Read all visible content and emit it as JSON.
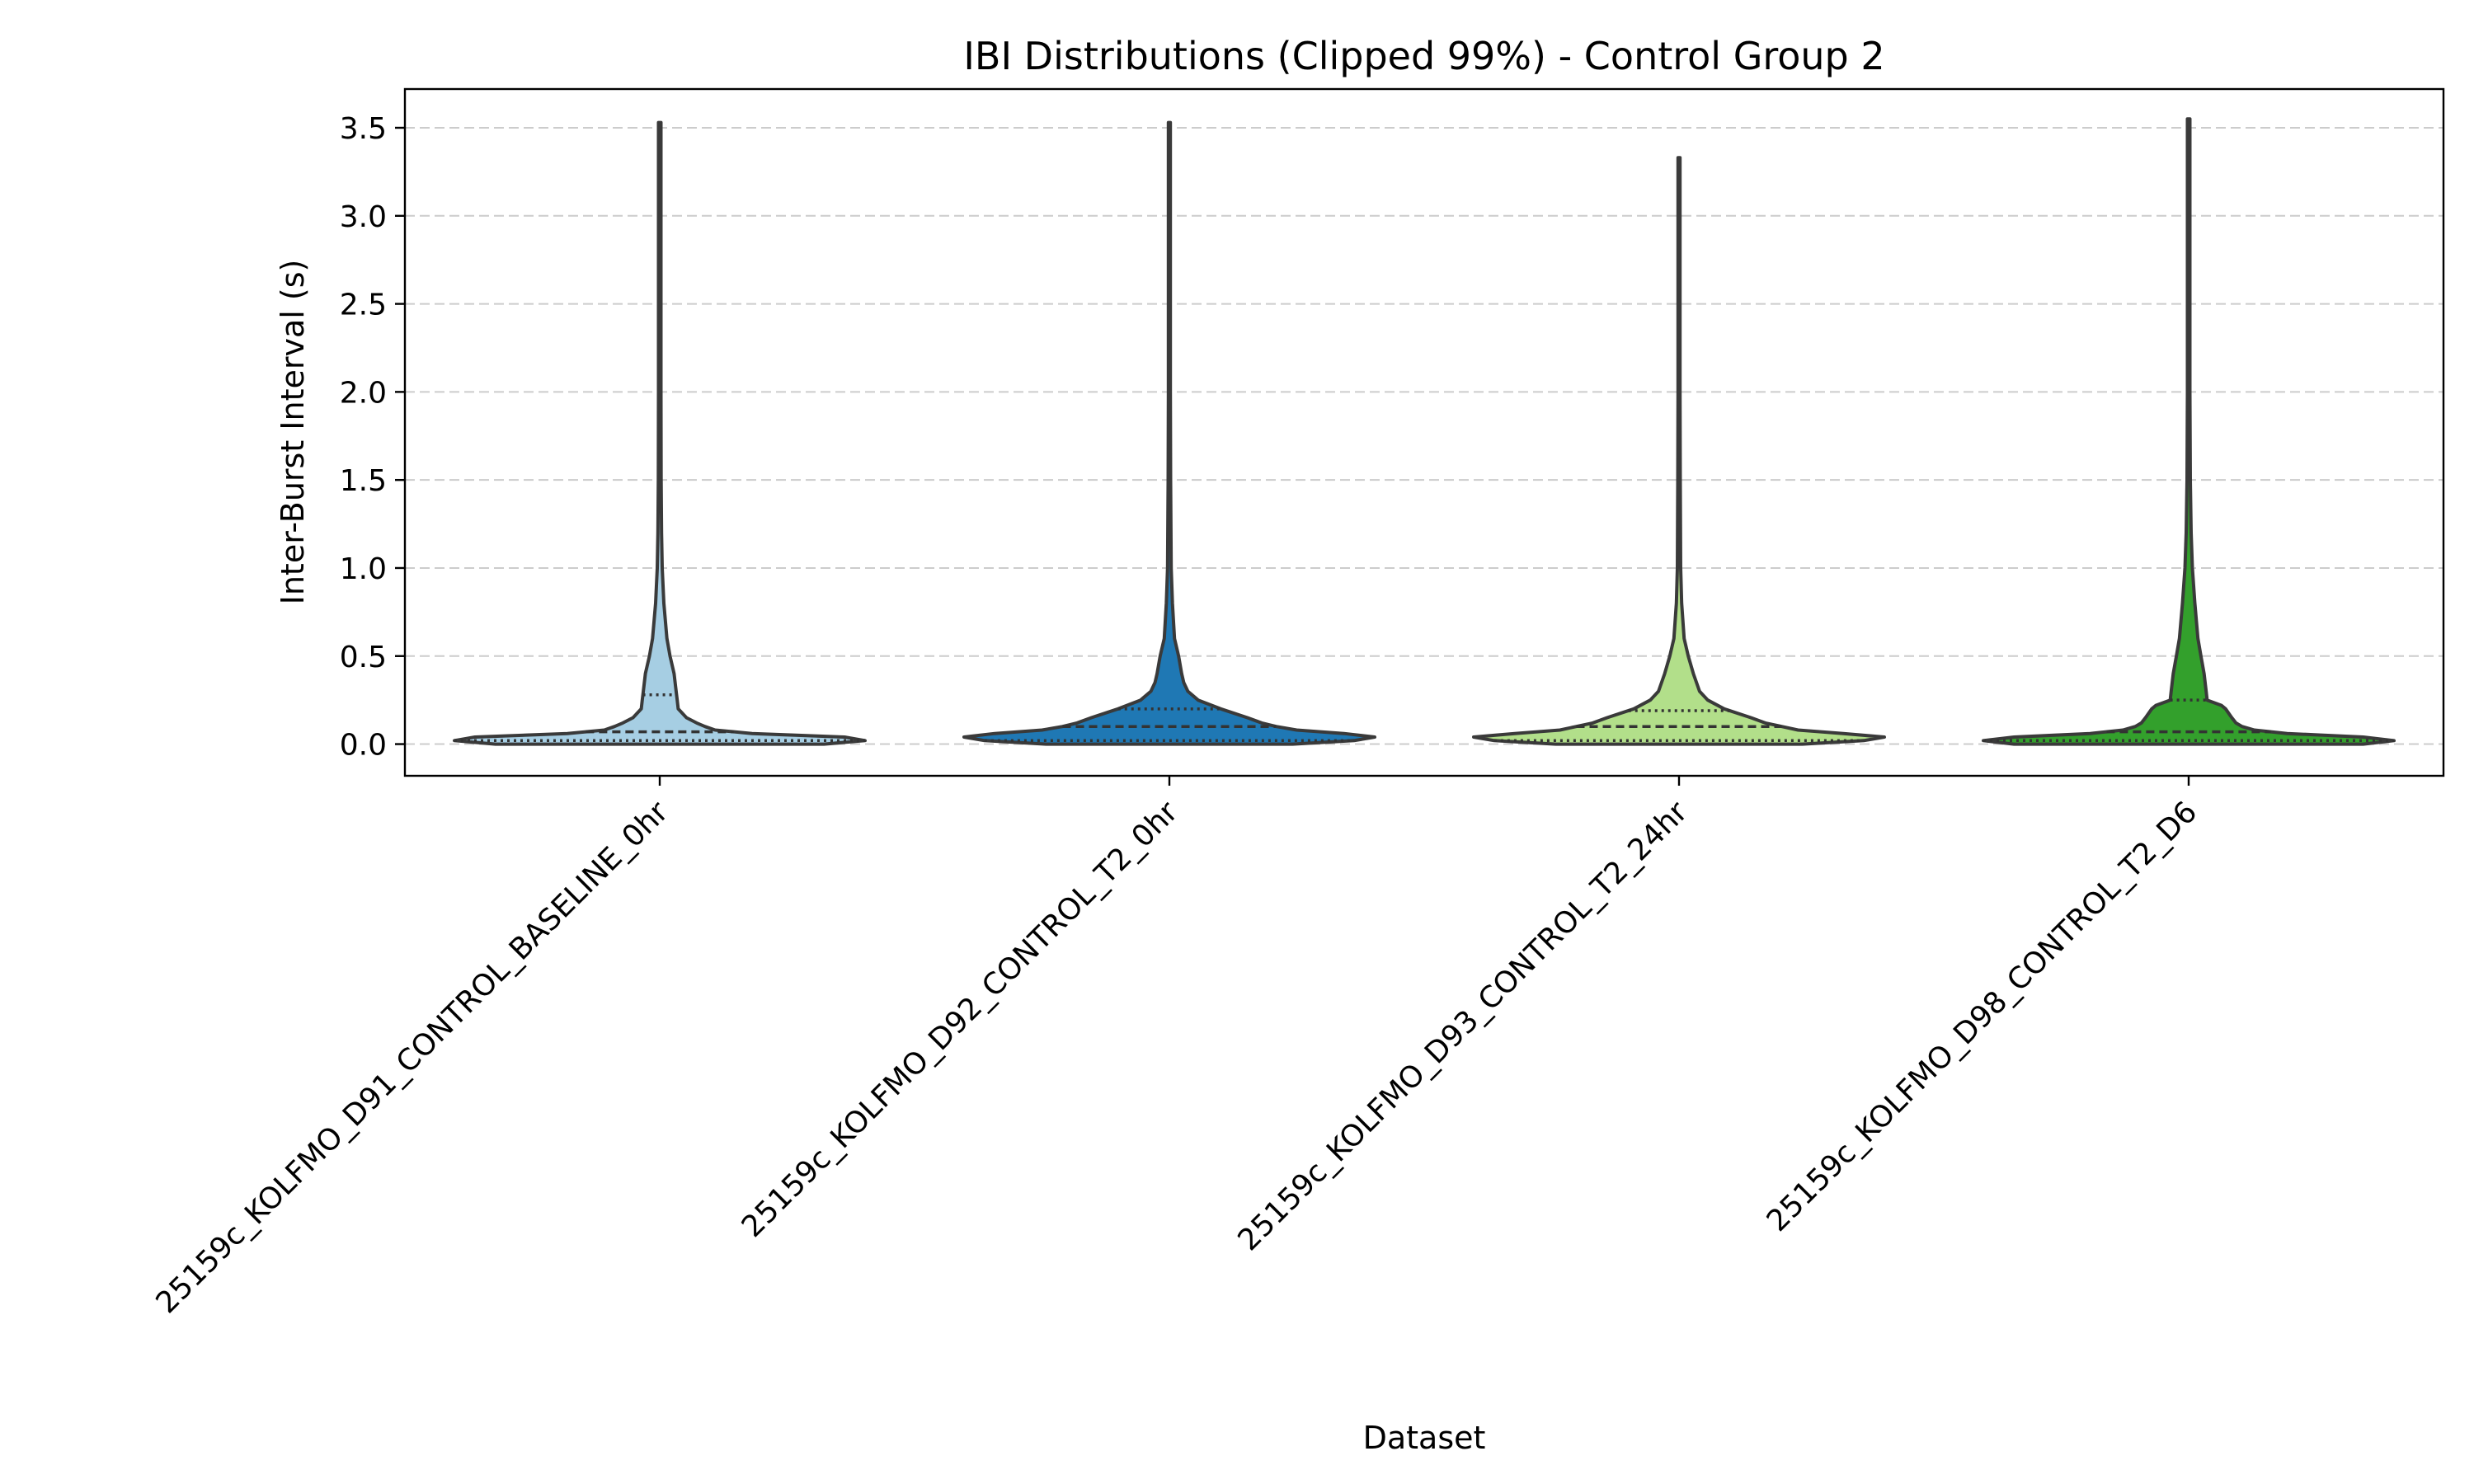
{
  "chart_data": {
    "type": "violin",
    "title": "IBI Distributions (Clipped 99%) - Control Group 2",
    "xlabel": "Dataset",
    "ylabel": "Inter-Burst Interval (s)",
    "ylim": [
      -0.18,
      3.72
    ],
    "yticks": [
      0.0,
      0.5,
      1.0,
      1.5,
      2.0,
      2.5,
      3.0,
      3.5
    ],
    "ytick_labels": [
      "0.0",
      "0.5",
      "1.0",
      "1.5",
      "2.0",
      "2.5",
      "3.0",
      "3.5"
    ],
    "grid": "y-dashed",
    "categories": [
      "25159c_KOLFMO_D91_CONTROL_BASELINE_0hr",
      "25159c_KOLFMO_D92_CONTROL_T2_0hr",
      "25159c_KOLFMO_D93_CONTROL_T2_24hr",
      "25159c_KOLFMO_D98_CONTROL_T2_D6"
    ],
    "colors": [
      "#a6cee3",
      "#1f78b4",
      "#b2df8a",
      "#33a02c"
    ],
    "series": [
      {
        "min": 0.0,
        "max": 3.53,
        "q1": 0.02,
        "median": 0.07,
        "q3": 0.28,
        "profile": [
          [
            0.0,
            0.8
          ],
          [
            0.02,
            1.0
          ],
          [
            0.04,
            0.9
          ],
          [
            0.06,
            0.45
          ],
          [
            0.08,
            0.27
          ],
          [
            0.1,
            0.22
          ],
          [
            0.12,
            0.18
          ],
          [
            0.15,
            0.13
          ],
          [
            0.2,
            0.09
          ],
          [
            0.25,
            0.085
          ],
          [
            0.3,
            0.08
          ],
          [
            0.4,
            0.07
          ],
          [
            0.5,
            0.05
          ],
          [
            0.6,
            0.035
          ],
          [
            0.8,
            0.02
          ],
          [
            1.0,
            0.012
          ],
          [
            1.2,
            0.009
          ],
          [
            1.5,
            0.007
          ],
          [
            2.0,
            0.006
          ],
          [
            2.5,
            0.006
          ],
          [
            3.0,
            0.006
          ],
          [
            3.53,
            0.006
          ]
        ]
      },
      {
        "min": 0.0,
        "max": 3.53,
        "q1": 0.02,
        "median": 0.1,
        "q3": 0.2,
        "profile": [
          [
            0.0,
            0.6
          ],
          [
            0.02,
            0.9
          ],
          [
            0.04,
            1.0
          ],
          [
            0.06,
            0.85
          ],
          [
            0.08,
            0.62
          ],
          [
            0.1,
            0.52
          ],
          [
            0.12,
            0.45
          ],
          [
            0.15,
            0.38
          ],
          [
            0.2,
            0.25
          ],
          [
            0.25,
            0.14
          ],
          [
            0.3,
            0.09
          ],
          [
            0.35,
            0.07
          ],
          [
            0.4,
            0.06
          ],
          [
            0.5,
            0.045
          ],
          [
            0.6,
            0.025
          ],
          [
            0.8,
            0.015
          ],
          [
            1.0,
            0.009
          ],
          [
            1.5,
            0.006
          ],
          [
            2.0,
            0.005
          ],
          [
            3.0,
            0.005
          ],
          [
            3.53,
            0.005
          ]
        ]
      },
      {
        "min": 0.0,
        "max": 3.33,
        "q1": 0.02,
        "median": 0.1,
        "q3": 0.19,
        "profile": [
          [
            0.0,
            0.6
          ],
          [
            0.02,
            0.9
          ],
          [
            0.04,
            1.0
          ],
          [
            0.06,
            0.8
          ],
          [
            0.08,
            0.58
          ],
          [
            0.1,
            0.5
          ],
          [
            0.12,
            0.42
          ],
          [
            0.15,
            0.35
          ],
          [
            0.2,
            0.22
          ],
          [
            0.25,
            0.14
          ],
          [
            0.3,
            0.1
          ],
          [
            0.4,
            0.07
          ],
          [
            0.5,
            0.045
          ],
          [
            0.6,
            0.025
          ],
          [
            0.8,
            0.013
          ],
          [
            1.0,
            0.008
          ],
          [
            1.5,
            0.006
          ],
          [
            2.0,
            0.005
          ],
          [
            3.0,
            0.005
          ],
          [
            3.33,
            0.005
          ]
        ]
      },
      {
        "min": 0.0,
        "max": 3.55,
        "q1": 0.02,
        "median": 0.07,
        "q3": 0.25,
        "profile": [
          [
            0.0,
            0.85
          ],
          [
            0.02,
            1.0
          ],
          [
            0.04,
            0.85
          ],
          [
            0.06,
            0.48
          ],
          [
            0.08,
            0.32
          ],
          [
            0.1,
            0.26
          ],
          [
            0.12,
            0.23
          ],
          [
            0.15,
            0.21
          ],
          [
            0.2,
            0.18
          ],
          [
            0.22,
            0.16
          ],
          [
            0.25,
            0.09
          ],
          [
            0.3,
            0.085
          ],
          [
            0.4,
            0.075
          ],
          [
            0.5,
            0.06
          ],
          [
            0.6,
            0.045
          ],
          [
            0.8,
            0.03
          ],
          [
            1.0,
            0.018
          ],
          [
            1.2,
            0.012
          ],
          [
            1.5,
            0.008
          ],
          [
            2.0,
            0.006
          ],
          [
            3.0,
            0.006
          ],
          [
            3.55,
            0.006
          ]
        ]
      }
    ]
  }
}
